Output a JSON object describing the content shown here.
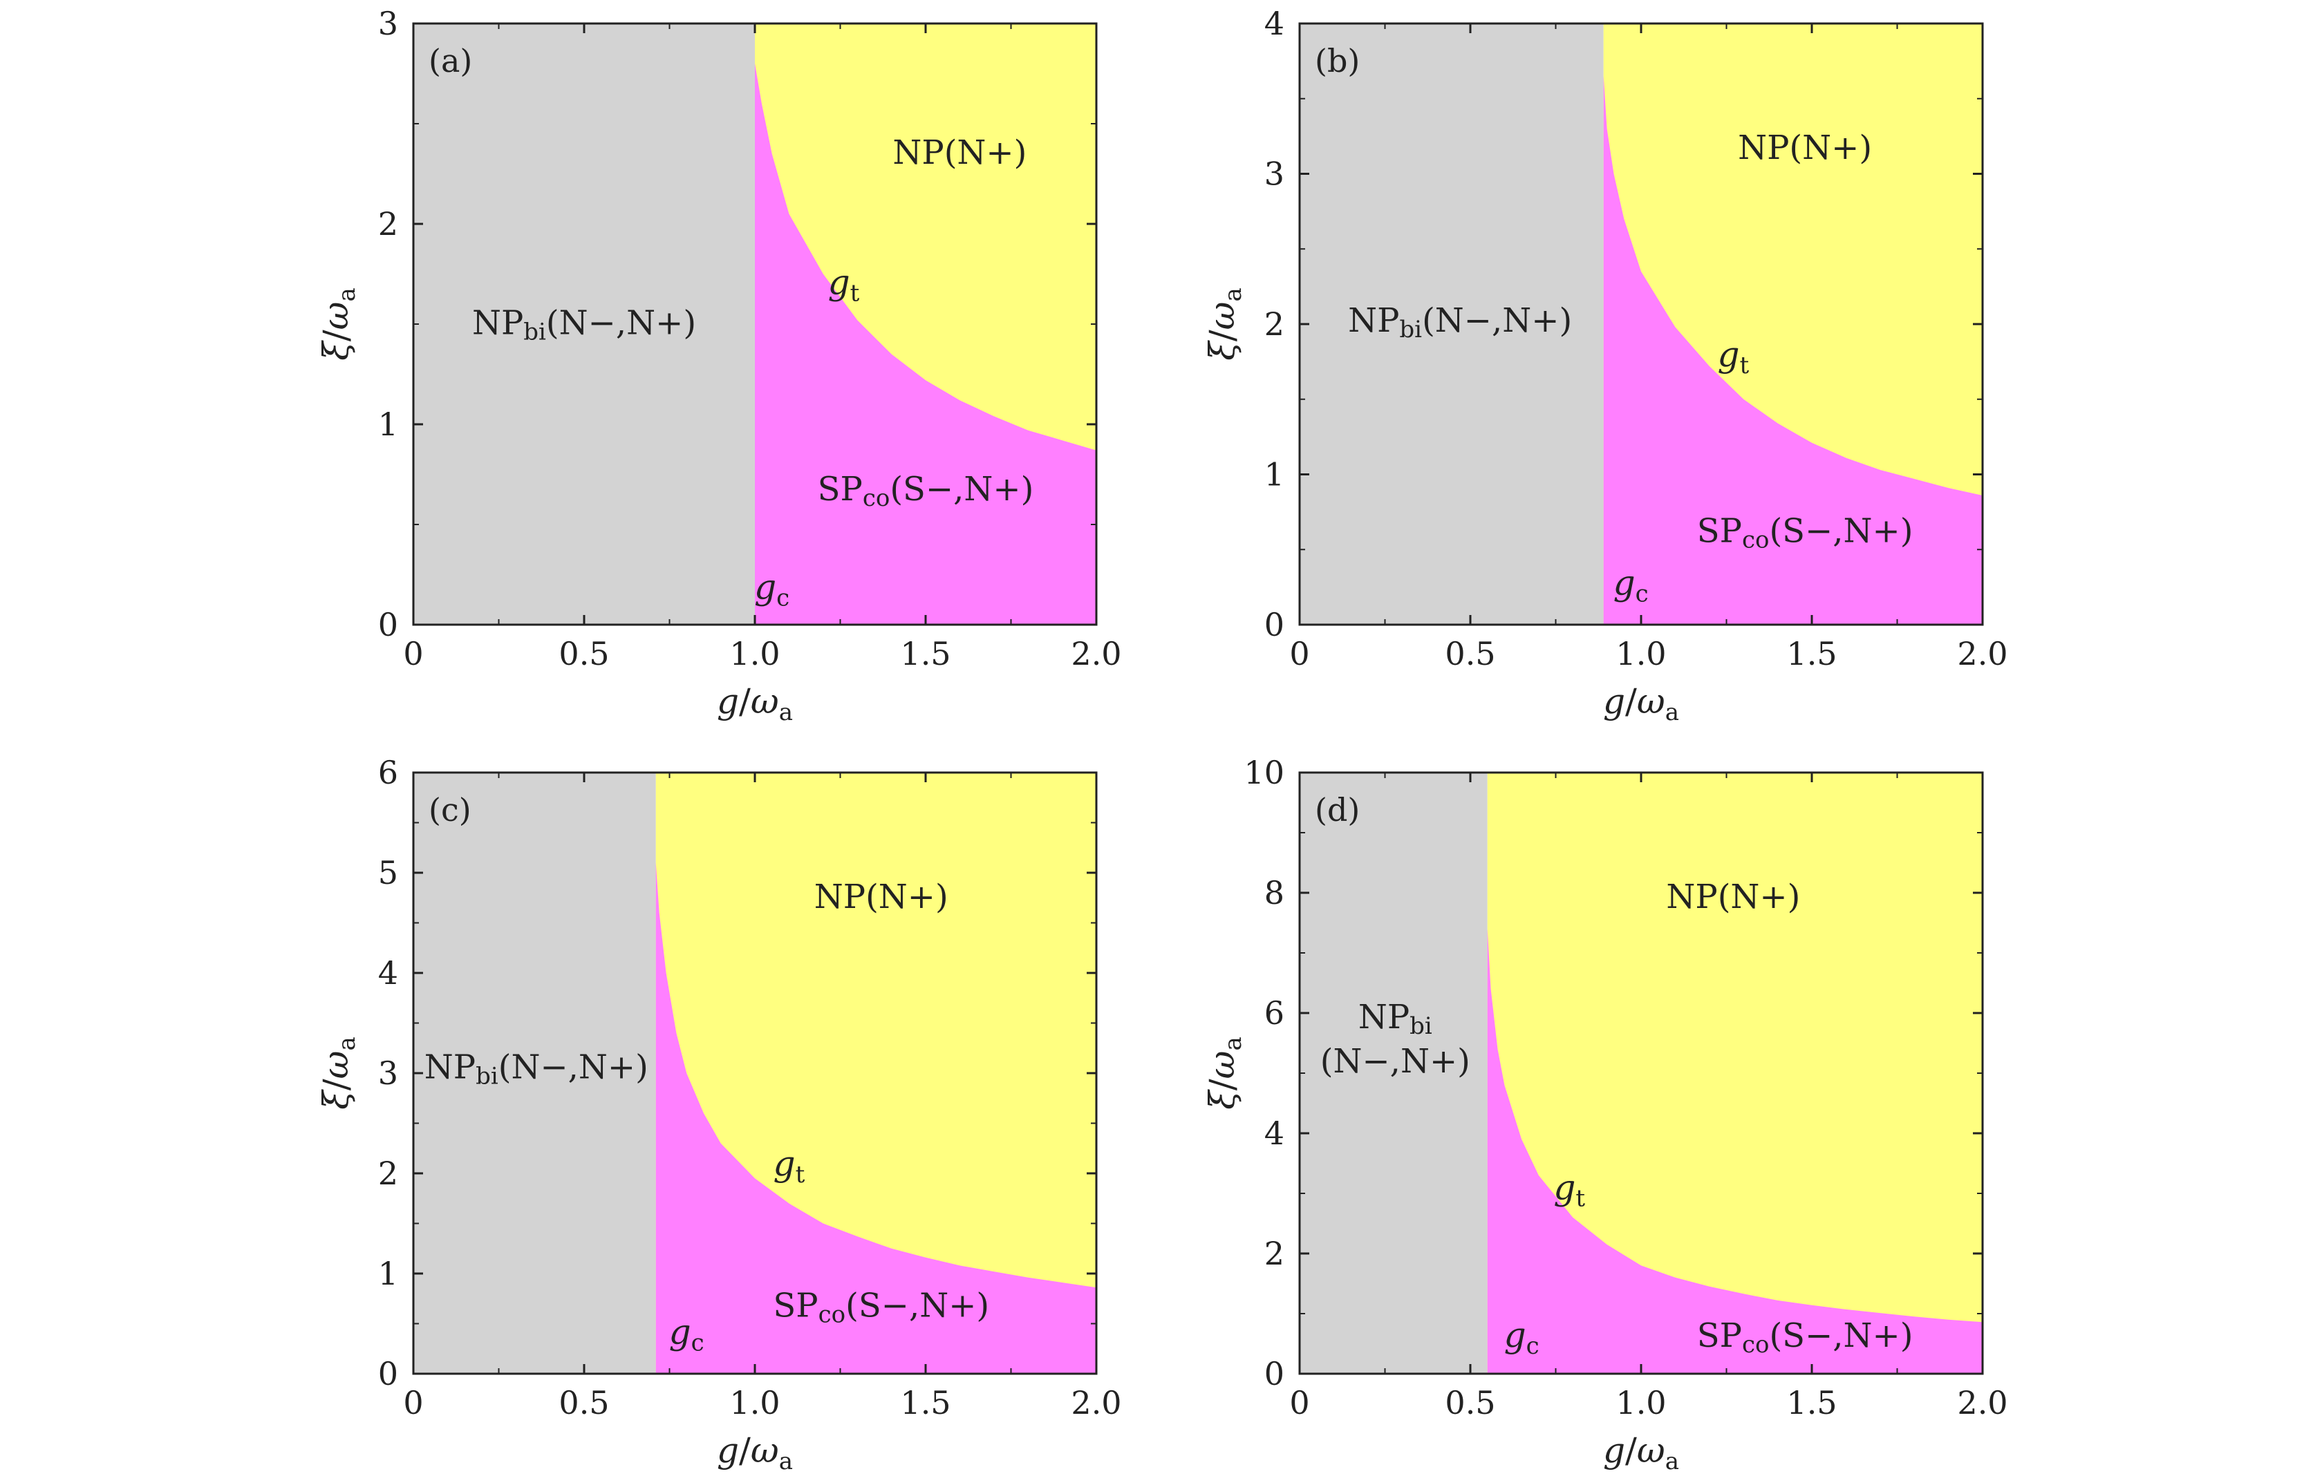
{
  "chart_data": [
    {
      "type": "area",
      "panel": "(a)",
      "xlim": [
        0,
        2.0
      ],
      "ylim": [
        0,
        3
      ],
      "xticks": [
        "0",
        "0.5",
        "1.0",
        "1.5",
        "2.0"
      ],
      "yticks": [
        "0",
        "1",
        "2",
        "3"
      ],
      "xlabel": {
        "var": "g",
        "sub": "a",
        "den": "ω"
      },
      "ylabel": {
        "var": "ξ",
        "sub": "a",
        "den": "ω"
      },
      "g_c": 1.0,
      "g_t_curve": [
        [
          1.0,
          2.8
        ],
        [
          1.02,
          2.6
        ],
        [
          1.05,
          2.35
        ],
        [
          1.1,
          2.05
        ],
        [
          1.2,
          1.75
        ],
        [
          1.3,
          1.52
        ],
        [
          1.4,
          1.35
        ],
        [
          1.5,
          1.22
        ],
        [
          1.6,
          1.12
        ],
        [
          1.7,
          1.04
        ],
        [
          1.8,
          0.97
        ],
        [
          1.9,
          0.92
        ],
        [
          2.0,
          0.87
        ]
      ],
      "labels": {
        "np_bi": {
          "main": "NP",
          "sub": "bi",
          "rest": "(N−,N+)",
          "x": 0.5,
          "y": 1.45
        },
        "np": {
          "main": "NP",
          "sub": "",
          "rest": "(N+)",
          "x": 1.6,
          "y": 2.3
        },
        "sp_co": {
          "main": "SP",
          "sub": "co",
          "rest": "(S−,N+)",
          "x": 1.5,
          "y": 0.62
        },
        "g_t": {
          "var": "g",
          "sub": "t",
          "x": 1.26,
          "y": 1.65
        },
        "g_c": {
          "var": "g",
          "sub": "c",
          "x": 1.05,
          "y": 0.13
        }
      }
    },
    {
      "type": "area",
      "panel": "(b)",
      "xlim": [
        0,
        2.0
      ],
      "ylim": [
        0,
        4
      ],
      "xticks": [
        "0",
        "0.5",
        "1.0",
        "1.5",
        "2.0"
      ],
      "yticks": [
        "0",
        "1",
        "2",
        "3",
        "4"
      ],
      "xlabel": {
        "var": "g",
        "sub": "a",
        "den": "ω"
      },
      "ylabel": {
        "var": "ξ",
        "sub": "a",
        "den": "ω"
      },
      "g_c": 0.89,
      "g_t_curve": [
        [
          0.89,
          3.65
        ],
        [
          0.9,
          3.3
        ],
        [
          0.92,
          3.0
        ],
        [
          0.95,
          2.7
        ],
        [
          1.0,
          2.35
        ],
        [
          1.1,
          1.98
        ],
        [
          1.2,
          1.72
        ],
        [
          1.3,
          1.5
        ],
        [
          1.4,
          1.34
        ],
        [
          1.5,
          1.21
        ],
        [
          1.6,
          1.11
        ],
        [
          1.7,
          1.03
        ],
        [
          1.8,
          0.97
        ],
        [
          1.9,
          0.91
        ],
        [
          2.0,
          0.86
        ]
      ],
      "labels": {
        "np_bi": {
          "main": "NP",
          "sub": "bi",
          "rest": "(N−,N+)",
          "x": 0.47,
          "y": 1.95
        },
        "np": {
          "main": "NP",
          "sub": "",
          "rest": "(N+)",
          "x": 1.48,
          "y": 3.1
        },
        "sp_co": {
          "main": "SP",
          "sub": "co",
          "rest": "(S−,N+)",
          "x": 1.48,
          "y": 0.55
        },
        "g_t": {
          "var": "g",
          "sub": "t",
          "x": 1.27,
          "y": 1.72
        },
        "g_c": {
          "var": "g",
          "sub": "c",
          "x": 0.97,
          "y": 0.2
        }
      }
    },
    {
      "type": "area",
      "panel": "(c)",
      "xlim": [
        0,
        2.0
      ],
      "ylim": [
        0,
        6
      ],
      "xticks": [
        "0",
        "0.5",
        "1.0",
        "1.5",
        "2.0"
      ],
      "yticks": [
        "0",
        "1",
        "2",
        "3",
        "4",
        "5",
        "6"
      ],
      "xlabel": {
        "var": "g",
        "sub": "a",
        "den": "ω"
      },
      "ylabel": {
        "var": "ξ",
        "sub": "a",
        "den": "ω"
      },
      "g_c": 0.71,
      "g_t_curve": [
        [
          0.71,
          5.1
        ],
        [
          0.72,
          4.6
        ],
        [
          0.74,
          4.0
        ],
        [
          0.77,
          3.4
        ],
        [
          0.8,
          3.0
        ],
        [
          0.85,
          2.6
        ],
        [
          0.9,
          2.3
        ],
        [
          1.0,
          1.95
        ],
        [
          1.1,
          1.7
        ],
        [
          1.2,
          1.5
        ],
        [
          1.3,
          1.37
        ],
        [
          1.4,
          1.25
        ],
        [
          1.5,
          1.16
        ],
        [
          1.6,
          1.08
        ],
        [
          1.7,
          1.02
        ],
        [
          1.8,
          0.96
        ],
        [
          1.9,
          0.91
        ],
        [
          2.0,
          0.86
        ]
      ],
      "labels": {
        "np_bi": {
          "main": "NP",
          "sub": "bi",
          "rest": "(N−,N+)",
          "x": 0.36,
          "y": 2.95
        },
        "np": {
          "main": "NP",
          "sub": "",
          "rest": "(N+)",
          "x": 1.37,
          "y": 4.65
        },
        "sp_co": {
          "main": "SP",
          "sub": "co",
          "rest": "(S−,N+)",
          "x": 1.37,
          "y": 0.57
        },
        "g_t": {
          "var": "g",
          "sub": "t",
          "x": 1.1,
          "y": 1.98
        },
        "g_c": {
          "var": "g",
          "sub": "c",
          "x": 0.8,
          "y": 0.3
        }
      }
    },
    {
      "type": "area",
      "panel": "(d)",
      "xlim": [
        0,
        2.0
      ],
      "ylim": [
        0,
        10
      ],
      "xticks": [
        "0",
        "0.5",
        "1.0",
        "1.5",
        "2.0"
      ],
      "yticks": [
        "0",
        "2",
        "4",
        "6",
        "8",
        "10"
      ],
      "xlabel": {
        "var": "g",
        "sub": "a",
        "den": "ω"
      },
      "ylabel": {
        "var": "ξ",
        "sub": "a",
        "den": "ω"
      },
      "g_c": 0.55,
      "g_t_curve": [
        [
          0.55,
          7.4
        ],
        [
          0.56,
          6.4
        ],
        [
          0.58,
          5.4
        ],
        [
          0.6,
          4.8
        ],
        [
          0.65,
          3.9
        ],
        [
          0.7,
          3.3
        ],
        [
          0.8,
          2.6
        ],
        [
          0.9,
          2.15
        ],
        [
          1.0,
          1.8
        ],
        [
          1.1,
          1.6
        ],
        [
          1.2,
          1.45
        ],
        [
          1.3,
          1.33
        ],
        [
          1.4,
          1.22
        ],
        [
          1.5,
          1.14
        ],
        [
          1.6,
          1.07
        ],
        [
          1.7,
          1.01
        ],
        [
          1.8,
          0.95
        ],
        [
          1.9,
          0.9
        ],
        [
          2.0,
          0.86
        ]
      ],
      "labels": {
        "np_bi": {
          "main": "NP",
          "sub": "bi",
          "rest": "(N−,N+)",
          "x": 0.28,
          "y": 5.4,
          "stacked": true
        },
        "np": {
          "main": "NP",
          "sub": "",
          "rest": "(N+)",
          "x": 1.27,
          "y": 7.75
        },
        "sp_co": {
          "main": "SP",
          "sub": "co",
          "rest": "(S−,N+)",
          "x": 1.48,
          "y": 0.45
        },
        "g_t": {
          "var": "g",
          "sub": "t",
          "x": 0.79,
          "y": 2.9
        },
        "g_c": {
          "var": "g",
          "sub": "c",
          "x": 0.65,
          "y": 0.45
        }
      }
    }
  ],
  "colors": {
    "np_bi_region": "#d3d3d3",
    "np_region": "#ffff80",
    "sp_co_region": "#ff80ff",
    "axis": "#222222"
  }
}
